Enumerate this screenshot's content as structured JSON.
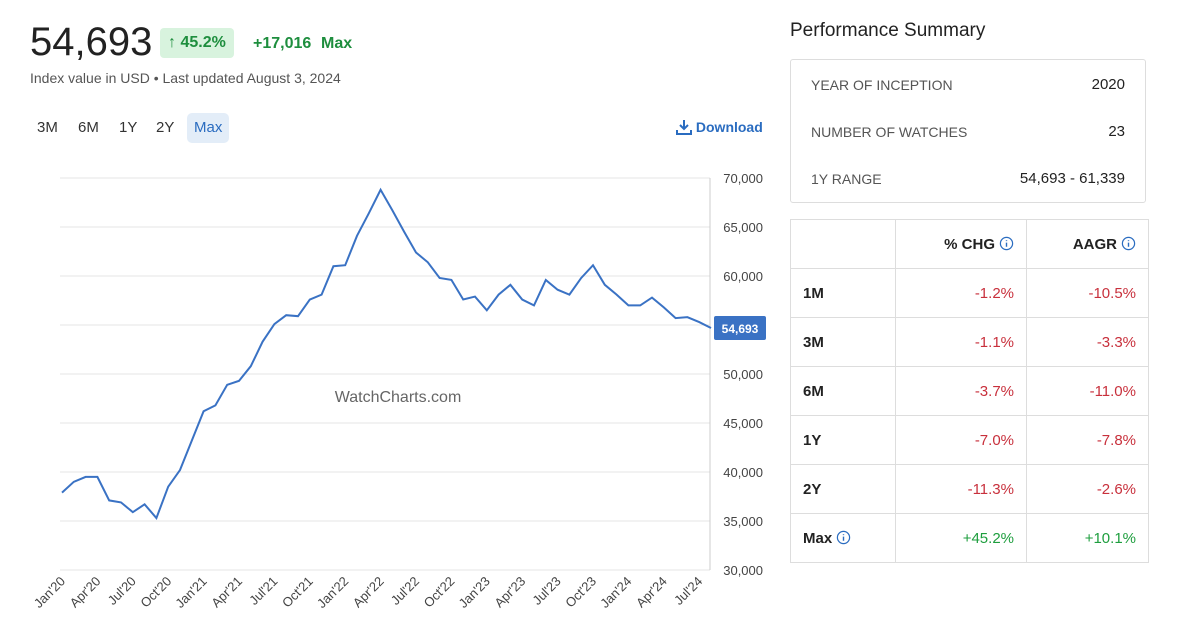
{
  "header": {
    "value": "54,693",
    "change_pct": "45.2%",
    "change_abs": "+17,016",
    "period": "Max",
    "subtitle": "Index value in USD • Last updated August 3, 2024"
  },
  "ranges": [
    "3M",
    "6M",
    "1Y",
    "2Y",
    "Max"
  ],
  "active_range": 4,
  "download": "Download",
  "chart_data": {
    "type": "line",
    "watermark": "WatchCharts.com",
    "color": "#3a72c4",
    "grid": true,
    "categories": [
      "Jan'20",
      null,
      null,
      "Apr'20",
      null,
      null,
      "Jul'20",
      null,
      null,
      "Oct'20",
      null,
      null,
      "Jan'21",
      null,
      null,
      "Apr'21",
      null,
      null,
      "Jul'21",
      null,
      null,
      "Oct'21",
      null,
      null,
      "Jan'22",
      null,
      null,
      "Apr'22",
      null,
      null,
      "Jul'22",
      null,
      null,
      "Oct'22",
      null,
      null,
      "Jan'23",
      null,
      null,
      "Apr'23",
      null,
      null,
      "Jul'23",
      null,
      null,
      "Oct'23",
      null,
      null,
      "Jan'24",
      null,
      null,
      "Apr'24",
      null,
      null,
      "Jul'24",
      null
    ],
    "values": [
      37900,
      39000,
      39500,
      39500,
      37100,
      36900,
      35900,
      36700,
      35300,
      38500,
      40200,
      43200,
      46200,
      46800,
      48900,
      49300,
      50800,
      53300,
      55100,
      56000,
      55900,
      57600,
      58100,
      61000,
      61100,
      64100,
      66400,
      68800,
      66700,
      64500,
      62400,
      61400,
      59800,
      59600,
      57600,
      57900,
      56500,
      58100,
      59100,
      57600,
      57000,
      59600,
      58600,
      58100,
      59800,
      61100,
      59100,
      58100,
      57000,
      57000,
      57800,
      56800,
      55700,
      55800,
      55300,
      54693
    ],
    "ylim": [
      30000,
      70000
    ],
    "yticks": [
      {
        "value": 30000,
        "label": "30,000"
      },
      {
        "value": 35000,
        "label": "35,000"
      },
      {
        "value": 40000,
        "label": "40,000"
      },
      {
        "value": 45000,
        "label": "45,000"
      },
      {
        "value": 50000,
        "label": "50,000"
      },
      {
        "value": 55000,
        "label": "55,000"
      },
      {
        "value": 60000,
        "label": "60,000"
      },
      {
        "value": 65000,
        "label": "65,000"
      },
      {
        "value": 70000,
        "label": "70,000"
      }
    ]
  },
  "summary": {
    "title": "Performance Summary",
    "rows": [
      [
        "YEAR OF INCEPTION",
        "2020"
      ],
      [
        "NUMBER OF WATCHES",
        "23"
      ],
      [
        "1Y RANGE",
        "54,693 - 61,339"
      ]
    ]
  },
  "table": {
    "header": [
      "% CHG",
      "AAGR"
    ],
    "rows": [
      [
        "1M",
        "-1.2%",
        "-10.5%"
      ],
      [
        "3M",
        "-1.1%",
        "-3.3%"
      ],
      [
        "6M",
        "-3.7%",
        "-11.0%"
      ],
      [
        "1Y",
        "-7.0%",
        "-7.8%"
      ],
      [
        "2Y",
        "-11.3%",
        "-2.6%"
      ],
      [
        "Max",
        "+45.2%",
        "+10.1%"
      ]
    ]
  }
}
